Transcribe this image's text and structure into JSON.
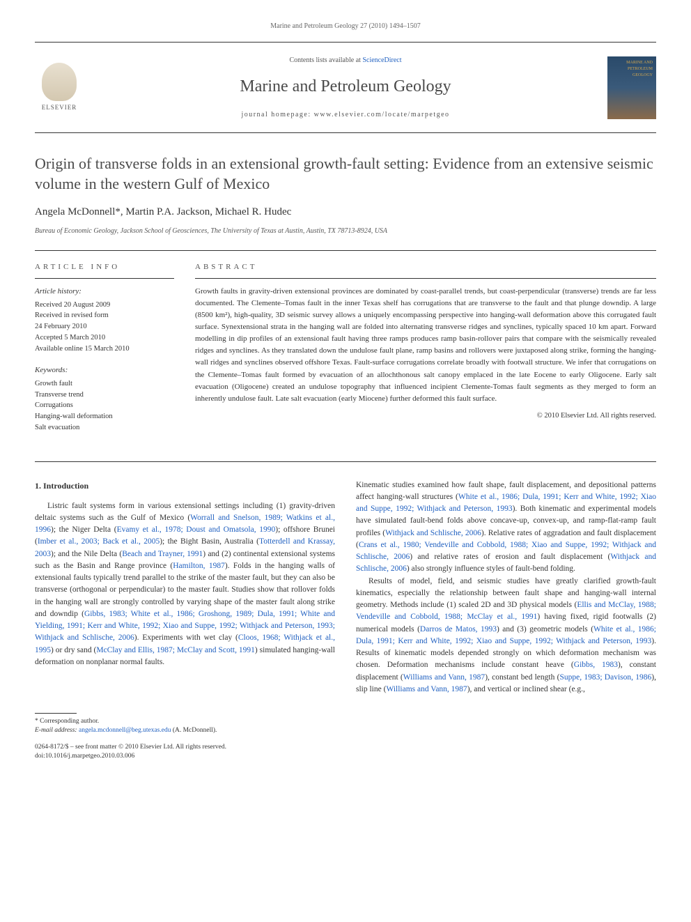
{
  "header_citation": "Marine and Petroleum Geology 27 (2010) 1494–1507",
  "contents_line_prefix": "Contents lists available at ",
  "contents_line_link": "ScienceDirect",
  "journal_title": "Marine and Petroleum Geology",
  "journal_homepage": "journal homepage: www.elsevier.com/locate/marpetgeo",
  "elsevier_label": "ELSEVIER",
  "cover_text": "MARINE AND\nPETROLEUM\nGEOLOGY",
  "article_title": "Origin of transverse folds in an extensional growth-fault setting: Evidence from an extensive seismic volume in the western Gulf of Mexico",
  "authors": "Angela McDonnell*, Martin P.A. Jackson, Michael R. Hudec",
  "affiliation": "Bureau of Economic Geology, Jackson School of Geosciences, The University of Texas at Austin, Austin, TX 78713-8924, USA",
  "info_header": "ARTICLE INFO",
  "abstract_header": "ABSTRACT",
  "history_title": "Article history:",
  "history_lines": "Received 20 August 2009\nReceived in revised form\n24 February 2010\nAccepted 5 March 2010\nAvailable online 15 March 2010",
  "keywords_title": "Keywords:",
  "keywords_lines": "Growth fault\nTransverse trend\nCorrugations\nHanging-wall deformation\nSalt evacuation",
  "abstract": "Growth faults in gravity-driven extensional provinces are dominated by coast-parallel trends, but coast-perpendicular (transverse) trends are far less documented. The Clemente–Tomas fault in the inner Texas shelf has corrugations that are transverse to the fault and that plunge downdip. A large (8500 km²), high-quality, 3D seismic survey allows a uniquely encompassing perspective into hanging-wall deformation above this corrugated fault surface. Synextensional strata in the hanging wall are folded into alternating transverse ridges and synclines, typically spaced 10 km apart. Forward modelling in dip profiles of an extensional fault having three ramps produces ramp basin-rollover pairs that compare with the seismically revealed ridges and synclines. As they translated down the undulose fault plane, ramp basins and rollovers were juxtaposed along strike, forming the hanging-wall ridges and synclines observed offshore Texas. Fault-surface corrugations correlate broadly with footwall structure. We infer that corrugations on the Clemente–Tomas fault formed by evacuation of an allochthonous salt canopy emplaced in the late Eocene to early Oligocene. Early salt evacuation (Oligocene) created an undulose topography that influenced incipient Clemente-Tomas fault segments as they merged to form an inherently undulose fault. Late salt evacuation (early Miocene) further deformed this fault surface.",
  "copyright": "© 2010 Elsevier Ltd. All rights reserved.",
  "intro_heading": "1. Introduction",
  "col1_para1_parts": [
    {
      "t": "text",
      "v": "Listric fault systems form in various extensional settings including (1) gravity-driven deltaic systems such as the Gulf of Mexico ("
    },
    {
      "t": "ref",
      "v": "Worrall and Snelson, 1989; Watkins et al., 1996"
    },
    {
      "t": "text",
      "v": "); the Niger Delta ("
    },
    {
      "t": "ref",
      "v": "Evamy et al., 1978; Doust and Omatsola, 1990"
    },
    {
      "t": "text",
      "v": "); offshore Brunei ("
    },
    {
      "t": "ref",
      "v": "Imber et al., 2003; Back et al., 2005"
    },
    {
      "t": "text",
      "v": "); the Bight Basin, Australia ("
    },
    {
      "t": "ref",
      "v": "Totterdell and Krassay, 2003"
    },
    {
      "t": "text",
      "v": "); and the Nile Delta ("
    },
    {
      "t": "ref",
      "v": "Beach and Trayner, 1991"
    },
    {
      "t": "text",
      "v": ") and (2) continental extensional systems such as the Basin and Range province ("
    },
    {
      "t": "ref",
      "v": "Hamilton, 1987"
    },
    {
      "t": "text",
      "v": "). Folds in the hanging walls of extensional faults typically trend parallel to the strike of the master fault, but they can also be transverse (orthogonal or perpendicular) to the master fault. Studies show that rollover folds in the hanging wall are strongly controlled by varying shape of the master fault along strike and downdip ("
    },
    {
      "t": "ref",
      "v": "Gibbs, 1983; White et al., 1986; Groshong, 1989; Dula, 1991; White and Yielding, 1991; Kerr and White, 1992; Xiao and Suppe, 1992; Withjack and Peterson, 1993; Withjack and Schlische, 2006"
    },
    {
      "t": "text",
      "v": "). Experiments with wet clay ("
    },
    {
      "t": "ref",
      "v": "Cloos, 1968; Withjack et al., 1995"
    },
    {
      "t": "text",
      "v": ") or dry sand ("
    },
    {
      "t": "ref",
      "v": "McClay and Ellis, 1987; McClay and Scott, 1991"
    },
    {
      "t": "text",
      "v": ") simulated hanging-wall deformation on nonplanar normal faults."
    }
  ],
  "col2_para1_parts": [
    {
      "t": "text",
      "v": "Kinematic studies examined how fault shape, fault displacement, and depositional patterns affect hanging-wall structures ("
    },
    {
      "t": "ref",
      "v": "White et al., 1986; Dula, 1991; Kerr and White, 1992; Xiao and Suppe, 1992; Withjack and Peterson, 1993"
    },
    {
      "t": "text",
      "v": "). Both kinematic and experimental models have simulated fault-bend folds above concave-up, convex-up, and ramp-flat-ramp fault profiles ("
    },
    {
      "t": "ref",
      "v": "Withjack and Schlische, 2006"
    },
    {
      "t": "text",
      "v": "). Relative rates of aggradation and fault displacement ("
    },
    {
      "t": "ref",
      "v": "Crans et al., 1980; Vendeville and Cobbold, 1988; Xiao and Suppe, 1992; Withjack and Schlische, 2006"
    },
    {
      "t": "text",
      "v": ") and relative rates of erosion and fault displacement ("
    },
    {
      "t": "ref",
      "v": "Withjack and Schlische, 2006"
    },
    {
      "t": "text",
      "v": ") also strongly influence styles of fault-bend folding."
    }
  ],
  "col2_para2_parts": [
    {
      "t": "text",
      "v": "Results of model, field, and seismic studies have greatly clarified growth-fault kinematics, especially the relationship between fault shape and hanging-wall internal geometry. Methods include (1) scaled 2D and 3D physical models ("
    },
    {
      "t": "ref",
      "v": "Ellis and McClay, 1988; Vendeville and Cobbold, 1988; McClay et al., 1991"
    },
    {
      "t": "text",
      "v": ") having fixed, rigid footwalls (2) numerical models ("
    },
    {
      "t": "ref",
      "v": "Darros de Matos, 1993"
    },
    {
      "t": "text",
      "v": ") and (3) geometric models ("
    },
    {
      "t": "ref",
      "v": "White et al., 1986; Dula, 1991; Kerr and White, 1992; Xiao and Suppe, 1992; Withjack and Peterson, 1993"
    },
    {
      "t": "text",
      "v": "). Results of kinematic models depended strongly on which deformation mechanism was chosen. Deformation mechanisms include constant heave ("
    },
    {
      "t": "ref",
      "v": "Gibbs, 1983"
    },
    {
      "t": "text",
      "v": "), constant displacement ("
    },
    {
      "t": "ref",
      "v": "Williams and Vann, 1987"
    },
    {
      "t": "text",
      "v": "), constant bed length ("
    },
    {
      "t": "ref",
      "v": "Suppe, 1983; Davison, 1986"
    },
    {
      "t": "text",
      "v": "), slip line ("
    },
    {
      "t": "ref",
      "v": "Williams and Vann, 1987"
    },
    {
      "t": "text",
      "v": "), and vertical or inclined shear (e.g.,"
    }
  ],
  "corresponding_label": "* Corresponding author.",
  "email_label": "E-mail address: ",
  "email_value": "angela.mcdonnell@beg.utexas.edu",
  "email_suffix": " (A. McDonnell).",
  "issn_line": "0264-8172/$ – see front matter © 2010 Elsevier Ltd. All rights reserved.",
  "doi_line": "doi:10.1016/j.marpetgeo.2010.03.006",
  "colors": {
    "text": "#333333",
    "muted": "#555555",
    "link": "#2060c0",
    "divider": "#333333"
  }
}
